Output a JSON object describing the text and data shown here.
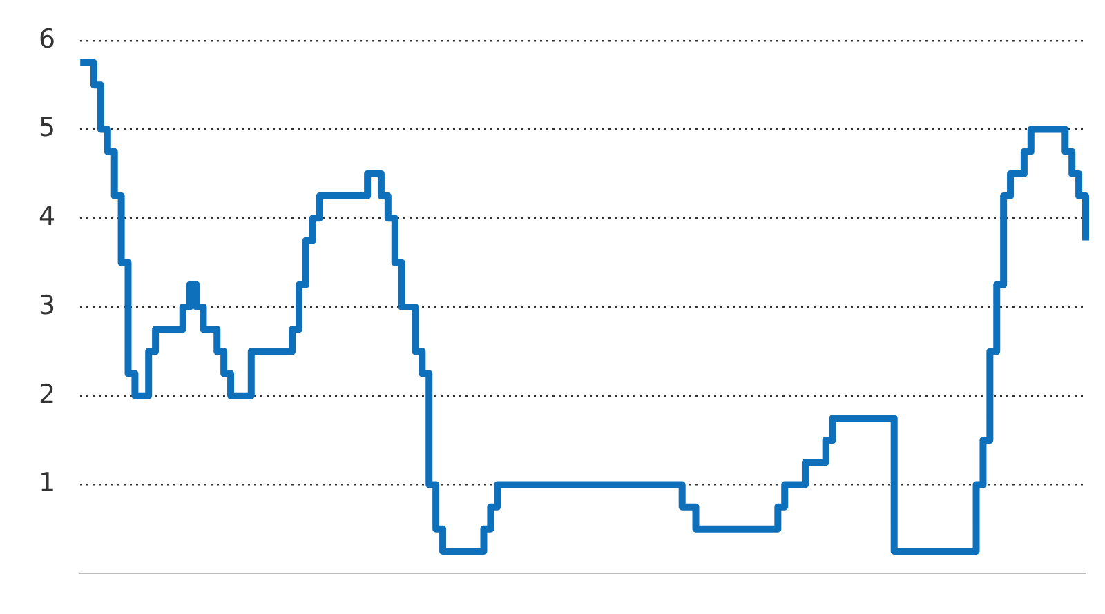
{
  "chart_data": {
    "type": "step",
    "categories": [
      null,
      null,
      null,
      null,
      null,
      null,
      null,
      null,
      null,
      null,
      null,
      null,
      null,
      null,
      null,
      null,
      null,
      null,
      null,
      null,
      null,
      null,
      null,
      null,
      null,
      null,
      null,
      null,
      null,
      null,
      null,
      null,
      null,
      null,
      null,
      null,
      null,
      null,
      null,
      null,
      null,
      null,
      null,
      null,
      null,
      null,
      null,
      null,
      null,
      null,
      null,
      null,
      null,
      null,
      null,
      null,
      null,
      null,
      null,
      null,
      null,
      null,
      null,
      null,
      null,
      null,
      null,
      null,
      null,
      null,
      null,
      null,
      null,
      null,
      null,
      null,
      null,
      null,
      null,
      null,
      null,
      null,
      null,
      null,
      null,
      null,
      null,
      null,
      null,
      null,
      null,
      null,
      null,
      null,
      null,
      null,
      null,
      null,
      null,
      null,
      null,
      null,
      null,
      null,
      null,
      null,
      null,
      null,
      null,
      null,
      null,
      null,
      null,
      null,
      null,
      null,
      null,
      null,
      null,
      null,
      null,
      null,
      null,
      null,
      null,
      null,
      null,
      null,
      null,
      null,
      null,
      null,
      null,
      null,
      null,
      null,
      null,
      null,
      null,
      null,
      null,
      null,
      null,
      null,
      null,
      null,
      null,
      null
    ],
    "series": [
      {
        "color": "#0e6fba",
        "values": [
          5.75,
          5.75,
          5.5,
          5.0,
          4.75,
          4.25,
          3.5,
          2.25,
          2.0,
          2.0,
          2.5,
          2.75,
          2.75,
          2.75,
          2.75,
          3.0,
          3.25,
          3.0,
          2.75,
          2.75,
          2.5,
          2.25,
          2.0,
          2.0,
          2.0,
          2.5,
          2.5,
          2.5,
          2.5,
          2.5,
          2.5,
          2.75,
          3.25,
          3.75,
          4.0,
          4.25,
          4.25,
          4.25,
          4.25,
          4.25,
          4.25,
          4.25,
          4.5,
          4.5,
          4.25,
          4.0,
          3.5,
          3.0,
          3.0,
          2.5,
          2.25,
          1.0,
          0.5,
          0.25,
          0.25,
          0.25,
          0.25,
          0.25,
          0.25,
          0.5,
          0.75,
          1.0,
          1.0,
          1.0,
          1.0,
          1.0,
          1.0,
          1.0,
          1.0,
          1.0,
          1.0,
          1.0,
          1.0,
          1.0,
          1.0,
          1.0,
          1.0,
          1.0,
          1.0,
          1.0,
          1.0,
          1.0,
          1.0,
          1.0,
          1.0,
          1.0,
          1.0,
          1.0,
          0.75,
          0.75,
          0.5,
          0.5,
          0.5,
          0.5,
          0.5,
          0.5,
          0.5,
          0.5,
          0.5,
          0.5,
          0.5,
          0.5,
          0.75,
          1.0,
          1.0,
          1.0,
          1.25,
          1.25,
          1.25,
          1.5,
          1.75,
          1.75,
          1.75,
          1.75,
          1.75,
          1.75,
          1.75,
          1.75,
          1.75,
          0.25,
          0.25,
          0.25,
          0.25,
          0.25,
          0.25,
          0.25,
          0.25,
          0.25,
          0.25,
          0.25,
          0.25,
          1.0,
          1.5,
          2.5,
          3.25,
          4.25,
          4.5,
          4.5,
          4.75,
          5.0,
          5.0,
          5.0,
          5.0,
          5.0,
          4.75,
          4.5,
          4.25,
          3.75
        ]
      }
    ],
    "ylim": [
      0,
      6
    ],
    "yticks": [
      1,
      2,
      3,
      4,
      5,
      6
    ],
    "grid": "y",
    "tick_labels": "y",
    "legend": false
  }
}
